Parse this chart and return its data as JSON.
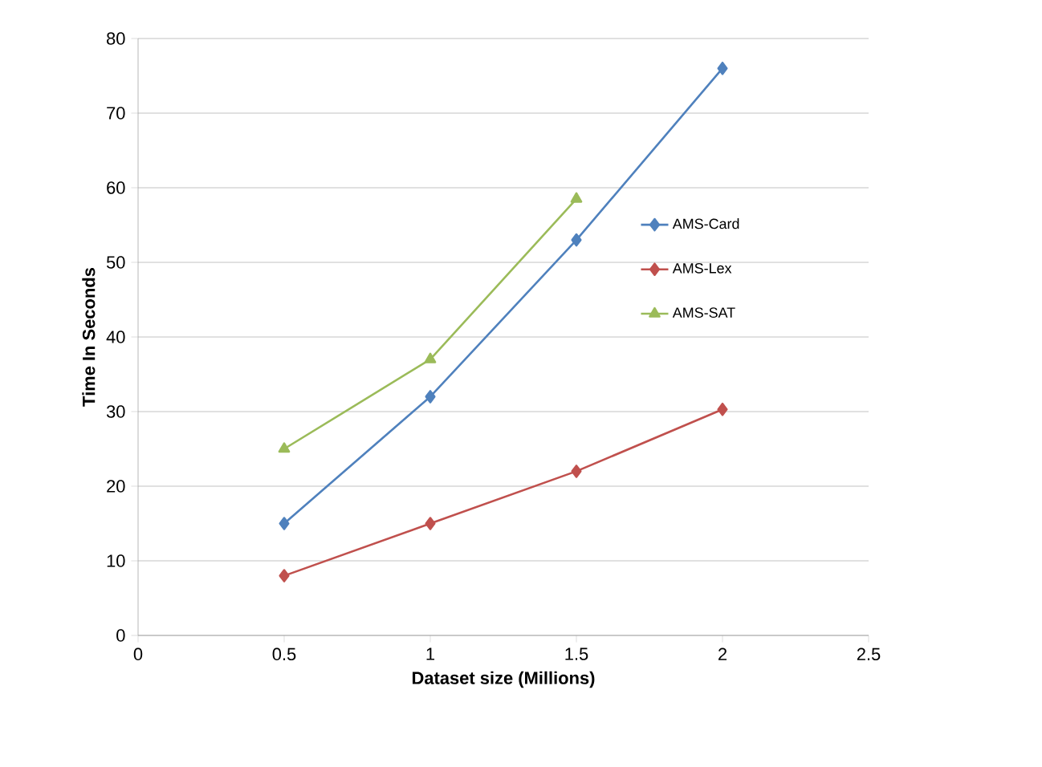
{
  "chart_data": {
    "type": "line",
    "xlabel": "Dataset size (Millions)",
    "ylabel": "Time In Seconds",
    "xlim": [
      0,
      2.5
    ],
    "xticks": [
      0,
      0.5,
      1,
      1.5,
      2,
      2.5
    ],
    "ylim": [
      0,
      80
    ],
    "yticks": [
      0,
      10,
      20,
      30,
      40,
      50,
      60,
      70,
      80
    ],
    "grid": "y",
    "legend": "right",
    "line_style": "solid",
    "series": [
      {
        "name": "AMS-Card",
        "color": "#4f81bd",
        "marker": "diamond",
        "x": [
          0.5,
          1,
          1.5,
          2
        ],
        "values": [
          15,
          32,
          53,
          76
        ]
      },
      {
        "name": "AMS-Lex",
        "color": "#c0504d",
        "marker": "diamond",
        "x": [
          0.5,
          1,
          1.5,
          2
        ],
        "values": [
          8,
          15,
          22,
          30.3
        ]
      },
      {
        "name": "AMS-SAT",
        "color": "#9bbb59",
        "marker": "triangle",
        "x": [
          0.5,
          1,
          1.5
        ],
        "values": [
          25,
          37,
          58.5
        ]
      }
    ]
  }
}
